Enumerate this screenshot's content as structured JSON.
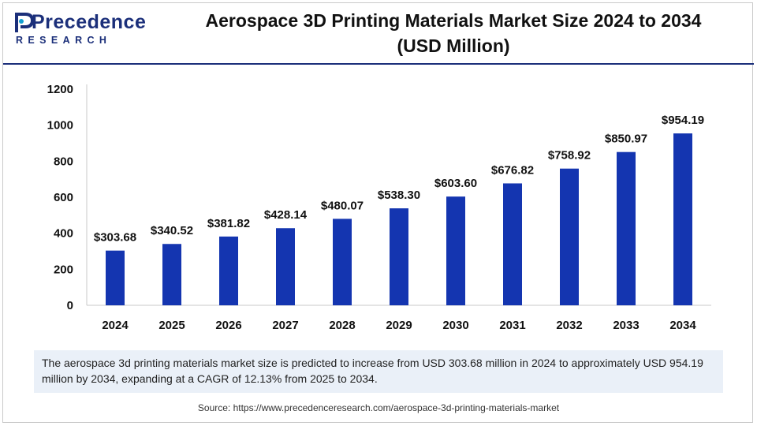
{
  "brand": {
    "name": "Precedence",
    "sub": "RESEARCH",
    "colors": {
      "primary": "#1b2f7a",
      "accent": "#14a0d2"
    }
  },
  "title": {
    "line1": "Aerospace 3D Printing Materials Market Size 2024 to 2034",
    "line2": "(USD Million)"
  },
  "chart_data": {
    "type": "bar",
    "categories": [
      "2024",
      "2025",
      "2026",
      "2027",
      "2028",
      "2029",
      "2030",
      "2031",
      "2032",
      "2033",
      "2034"
    ],
    "values": [
      303.68,
      340.52,
      381.82,
      428.14,
      480.07,
      538.3,
      603.6,
      676.82,
      758.92,
      850.97,
      954.19
    ],
    "data_labels": [
      "$303.68",
      "$340.52",
      "$381.82",
      "$428.14",
      "$480.07",
      "$538.30",
      "$603.60",
      "$676.82",
      "$758.92",
      "$850.97",
      "$954.19"
    ],
    "ylim": [
      0,
      1200
    ],
    "yticks": [
      0,
      200,
      400,
      600,
      800,
      1000,
      1200
    ],
    "grid": false,
    "bar_color": "#1435b0"
  },
  "caption": "The aerospace 3d printing materials market size is predicted to increase from USD 303.68 million in 2024 to approximately USD 954.19 million by 2034, expanding at a CAGR of 12.13% from 2025 to 2034.",
  "source": "Source: https://www.precedenceresearch.com/aerospace-3d-printing-materials-market"
}
